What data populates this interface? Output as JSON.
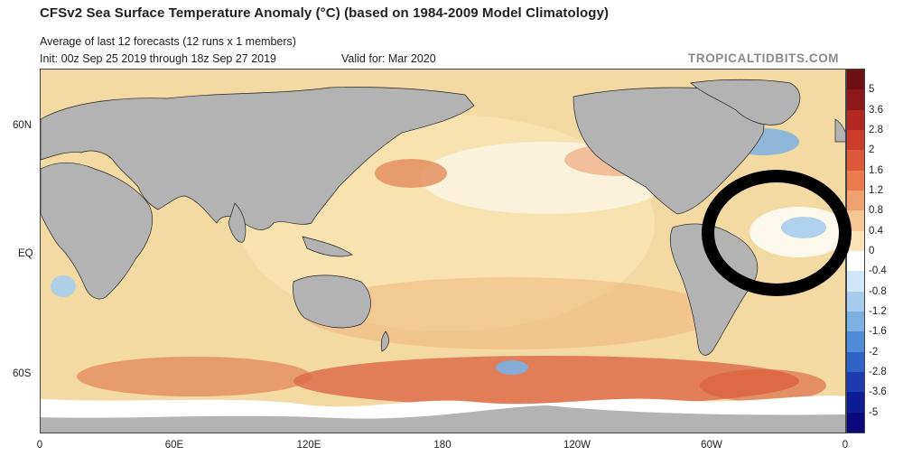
{
  "header": {
    "title": "CFSv2 Sea Surface Temperature Anomaly (°C) (based on 1984-2009 Model Climatology)",
    "subtitle": "Average of last 12 forecasts (12 runs x 1 members)",
    "init": "Init: 00z Sep 25 2019 through 18z Sep 27 2019",
    "valid": "Valid for: Mar 2020",
    "credit": "TROPICALTIDBITS.COM"
  },
  "map": {
    "lat_labels": [
      "60N",
      "EQ",
      "60S"
    ],
    "lon_labels": [
      "0",
      "60E",
      "120E",
      "180",
      "120W",
      "60W",
      "0"
    ]
  },
  "colorbar": {
    "labels": [
      "5",
      "3.6",
      "2.8",
      "2",
      "1.6",
      "1.2",
      "0.8",
      "0.4",
      "0",
      "-0.4",
      "-0.8",
      "-1.2",
      "-1.6",
      "-2",
      "-2.8",
      "-3.6",
      "-5"
    ],
    "colors": [
      "#6e0f13",
      "#8e1719",
      "#b12722",
      "#cc3d2b",
      "#dc5a3a",
      "#e87a4e",
      "#f1a070",
      "#f7c694",
      "#fbe3b8",
      "#ffffff",
      "#cfe6f6",
      "#a7cdee",
      "#7cb0e3",
      "#4f8cd8",
      "#2f63c6",
      "#1c3bb0",
      "#0e1c96",
      "#0a0a7d"
    ]
  },
  "annotation": {
    "ring_color": "#000000"
  },
  "colors": {
    "land": "#b3b3b3",
    "ice": "#ffffff",
    "coast": "#222222"
  }
}
